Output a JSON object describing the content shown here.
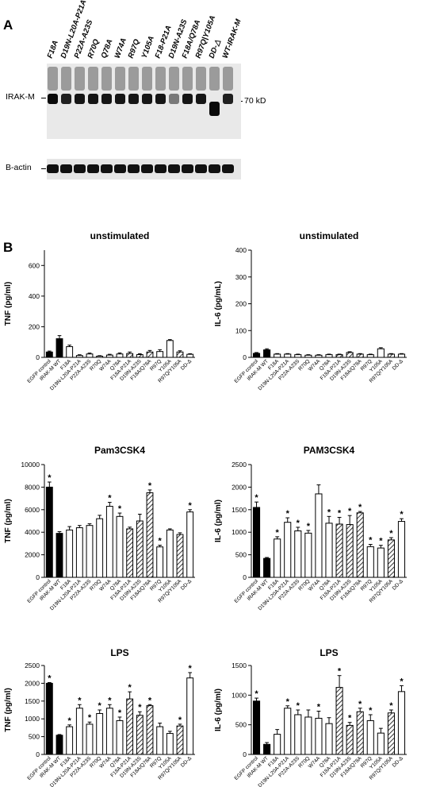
{
  "panel_a": {
    "letter": "A",
    "lanes": [
      "F18A",
      "D19N-L20A-P21A",
      "P22A-A23S",
      "R70Q",
      "Q78A",
      "W74A",
      "R97Q",
      "Y105A",
      "F18-P21A",
      "D19N-A23S",
      "F18A/Q78A",
      "R97Q|Y105A",
      "DD-△",
      "WT-IRAK-M"
    ],
    "band_label": "IRAK-M",
    "marker_label": "70 kD",
    "loading_label": "B-actin"
  },
  "panel_b": {
    "letter": "B"
  },
  "chart_data": [
    {
      "type": "bar",
      "title": "unstimulated",
      "ylabel": "TNF (pg/ml)",
      "ylim": [
        0,
        700
      ],
      "yticks": [
        0,
        200,
        400,
        600
      ],
      "categories": [
        "EGFP control",
        "IRAK-M WT",
        "F18A",
        "D19N-L20A-P21A",
        "P22A-A23S",
        "R70Q",
        "W74A",
        "Q78A",
        "F18A-P21A",
        "D19N-A23S",
        "F18A/Q78A",
        "R97Q",
        "Y105A",
        "R97Q/Y105A",
        "DD-Δ"
      ],
      "values": [
        35,
        122,
        70,
        12,
        22,
        8,
        15,
        22,
        25,
        18,
        35,
        38,
        110,
        35,
        20
      ],
      "errors": [
        6,
        20,
        10,
        5,
        6,
        3,
        5,
        7,
        10,
        6,
        10,
        12,
        6,
        8,
        4
      ],
      "fills": [
        "black",
        "black",
        "white",
        "white",
        "white",
        "white",
        "white",
        "white",
        "hatch",
        "hatch",
        "hatch",
        "white",
        "white",
        "hatch",
        "white"
      ],
      "significant": [
        false,
        false,
        false,
        false,
        false,
        false,
        false,
        false,
        false,
        false,
        false,
        false,
        false,
        false,
        false
      ]
    },
    {
      "type": "bar",
      "title": "unstimulated",
      "ylabel": "IL-6 (pg/mL)",
      "ylim": [
        0,
        400
      ],
      "yticks": [
        0,
        100,
        200,
        300,
        400
      ],
      "categories": [
        "EGFP control",
        "IRAK-M WT",
        "F18A",
        "D19N-L20A-P21A",
        "P22A-A23S",
        "R70Q",
        "W74A",
        "Q78A",
        "F18A-P21A",
        "D19N-A23S",
        "F18A/Q78A",
        "R97Q",
        "Y105A",
        "R97Q/Y105A",
        "DD-Δ"
      ],
      "values": [
        15,
        28,
        12,
        12,
        10,
        8,
        8,
        10,
        10,
        18,
        12,
        10,
        32,
        12,
        12
      ],
      "errors": [
        3,
        4,
        2,
        2,
        2,
        2,
        2,
        2,
        2,
        3,
        2,
        2,
        4,
        2,
        2
      ],
      "fills": [
        "black",
        "black",
        "white",
        "white",
        "white",
        "white",
        "white",
        "white",
        "hatch",
        "hatch",
        "hatch",
        "white",
        "white",
        "hatch",
        "white"
      ],
      "significant": [
        false,
        false,
        false,
        false,
        false,
        false,
        false,
        false,
        false,
        false,
        false,
        false,
        false,
        false,
        false
      ]
    },
    {
      "type": "bar",
      "title": "Pam3CSK4",
      "ylabel": "TNF (pg/ml)",
      "ylim": [
        0,
        10000
      ],
      "yticks": [
        0,
        2000,
        4000,
        6000,
        8000,
        10000
      ],
      "categories": [
        "EGFP control",
        "IRAK-M WT",
        "F18A",
        "D19N-L20A-P21A",
        "P22A-A23S",
        "R70Q",
        "W74A",
        "Q78A",
        "F18A-P21A",
        "D19N-A23S",
        "F18A/Q78A",
        "R97Q",
        "Y105A",
        "R97Q/Y105A",
        "DD-Δ"
      ],
      "values": [
        8000,
        3900,
        4200,
        4400,
        4600,
        5200,
        6300,
        5400,
        4300,
        5000,
        7500,
        2700,
        4200,
        3800,
        5800
      ],
      "errors": [
        450,
        150,
        300,
        200,
        150,
        300,
        350,
        300,
        150,
        600,
        250,
        150,
        100,
        150,
        200
      ],
      "fills": [
        "black",
        "black",
        "white",
        "white",
        "white",
        "white",
        "white",
        "white",
        "hatch",
        "hatch",
        "hatch",
        "white",
        "white",
        "hatch",
        "white"
      ],
      "significant": [
        true,
        false,
        false,
        false,
        false,
        false,
        true,
        true,
        false,
        false,
        true,
        true,
        false,
        false,
        true
      ]
    },
    {
      "type": "bar",
      "title": "PAM3CSK4",
      "ylabel": "IL-6 (pg/ml)",
      "ylim": [
        0,
        2500
      ],
      "yticks": [
        0,
        500,
        1000,
        1500,
        2000,
        2500
      ],
      "categories": [
        "EGFP control",
        "IRAK-M WT",
        "F18A",
        "D19N-L20A-P21A",
        "P22A-A23S",
        "R70Q",
        "W74A",
        "Q78A",
        "F18A-P21A",
        "D19N-A23S",
        "F18A/Q78A",
        "R97Q",
        "Y105A",
        "R97Q/Y105A",
        "DD-Δ"
      ],
      "values": [
        1550,
        420,
        850,
        1220,
        1030,
        980,
        1850,
        1200,
        1180,
        1170,
        1430,
        680,
        650,
        830,
        1240
      ],
      "errors": [
        120,
        20,
        50,
        100,
        80,
        60,
        200,
        150,
        150,
        200,
        30,
        50,
        60,
        50,
        60
      ],
      "fills": [
        "black",
        "black",
        "white",
        "white",
        "white",
        "white",
        "white",
        "white",
        "hatch",
        "hatch",
        "hatch",
        "white",
        "white",
        "hatch",
        "white"
      ],
      "significant": [
        true,
        false,
        true,
        true,
        true,
        true,
        false,
        true,
        true,
        true,
        true,
        true,
        true,
        true,
        true
      ]
    },
    {
      "type": "bar",
      "title": "LPS",
      "ylabel": "TNF (pg/ml)",
      "ylim": [
        0,
        2500
      ],
      "yticks": [
        0,
        500,
        1000,
        1500,
        2000,
        2500
      ],
      "categories": [
        "EGFP control",
        "IRAK-M WT",
        "F18A",
        "D19N-L20A-P21A",
        "P22A-A23S",
        "R70Q",
        "W74A",
        "Q78A",
        "F18A-P21A",
        "D19N-A23S",
        "F18A/Q78A",
        "R97Q",
        "Y105A",
        "R97Q/Y105A",
        "DD-Δ"
      ],
      "values": [
        2000,
        540,
        780,
        1300,
        850,
        1150,
        1300,
        950,
        1560,
        1100,
        1370,
        780,
        590,
        800,
        2150
      ],
      "errors": [
        20,
        20,
        50,
        100,
        60,
        100,
        100,
        100,
        200,
        100,
        30,
        100,
        60,
        50,
        150
      ],
      "fills": [
        "black",
        "black",
        "white",
        "white",
        "white",
        "white",
        "white",
        "white",
        "hatch",
        "hatch",
        "hatch",
        "white",
        "white",
        "hatch",
        "white"
      ],
      "significant": [
        true,
        false,
        true,
        true,
        true,
        true,
        true,
        true,
        true,
        true,
        true,
        false,
        false,
        true,
        true
      ]
    },
    {
      "type": "bar",
      "title": "LPS",
      "ylabel": "IL-6 (pg/ml)",
      "ylim": [
        0,
        1500
      ],
      "yticks": [
        0,
        500,
        1000,
        1500
      ],
      "categories": [
        "EGFP control",
        "IRAK-M WT",
        "F18A",
        "D19N-L20A-P21A",
        "P22A-A23S",
        "R70Q",
        "W74A",
        "Q78A",
        "F18A-P21A",
        "D19N-A23S",
        "F18A/Q78A",
        "R97Q",
        "Y105A",
        "R97Q/Y105A",
        "DD-Δ"
      ],
      "values": [
        900,
        170,
        340,
        780,
        670,
        630,
        610,
        520,
        1130,
        490,
        720,
        570,
        360,
        700,
        1060
      ],
      "errors": [
        50,
        30,
        80,
        40,
        80,
        120,
        120,
        100,
        200,
        50,
        60,
        100,
        80,
        50,
        100
      ],
      "fills": [
        "black",
        "black",
        "white",
        "white",
        "white",
        "white",
        "white",
        "white",
        "hatch",
        "hatch",
        "hatch",
        "white",
        "white",
        "hatch",
        "white"
      ],
      "significant": [
        true,
        false,
        false,
        true,
        true,
        false,
        true,
        false,
        true,
        true,
        true,
        true,
        false,
        true,
        true
      ]
    }
  ]
}
